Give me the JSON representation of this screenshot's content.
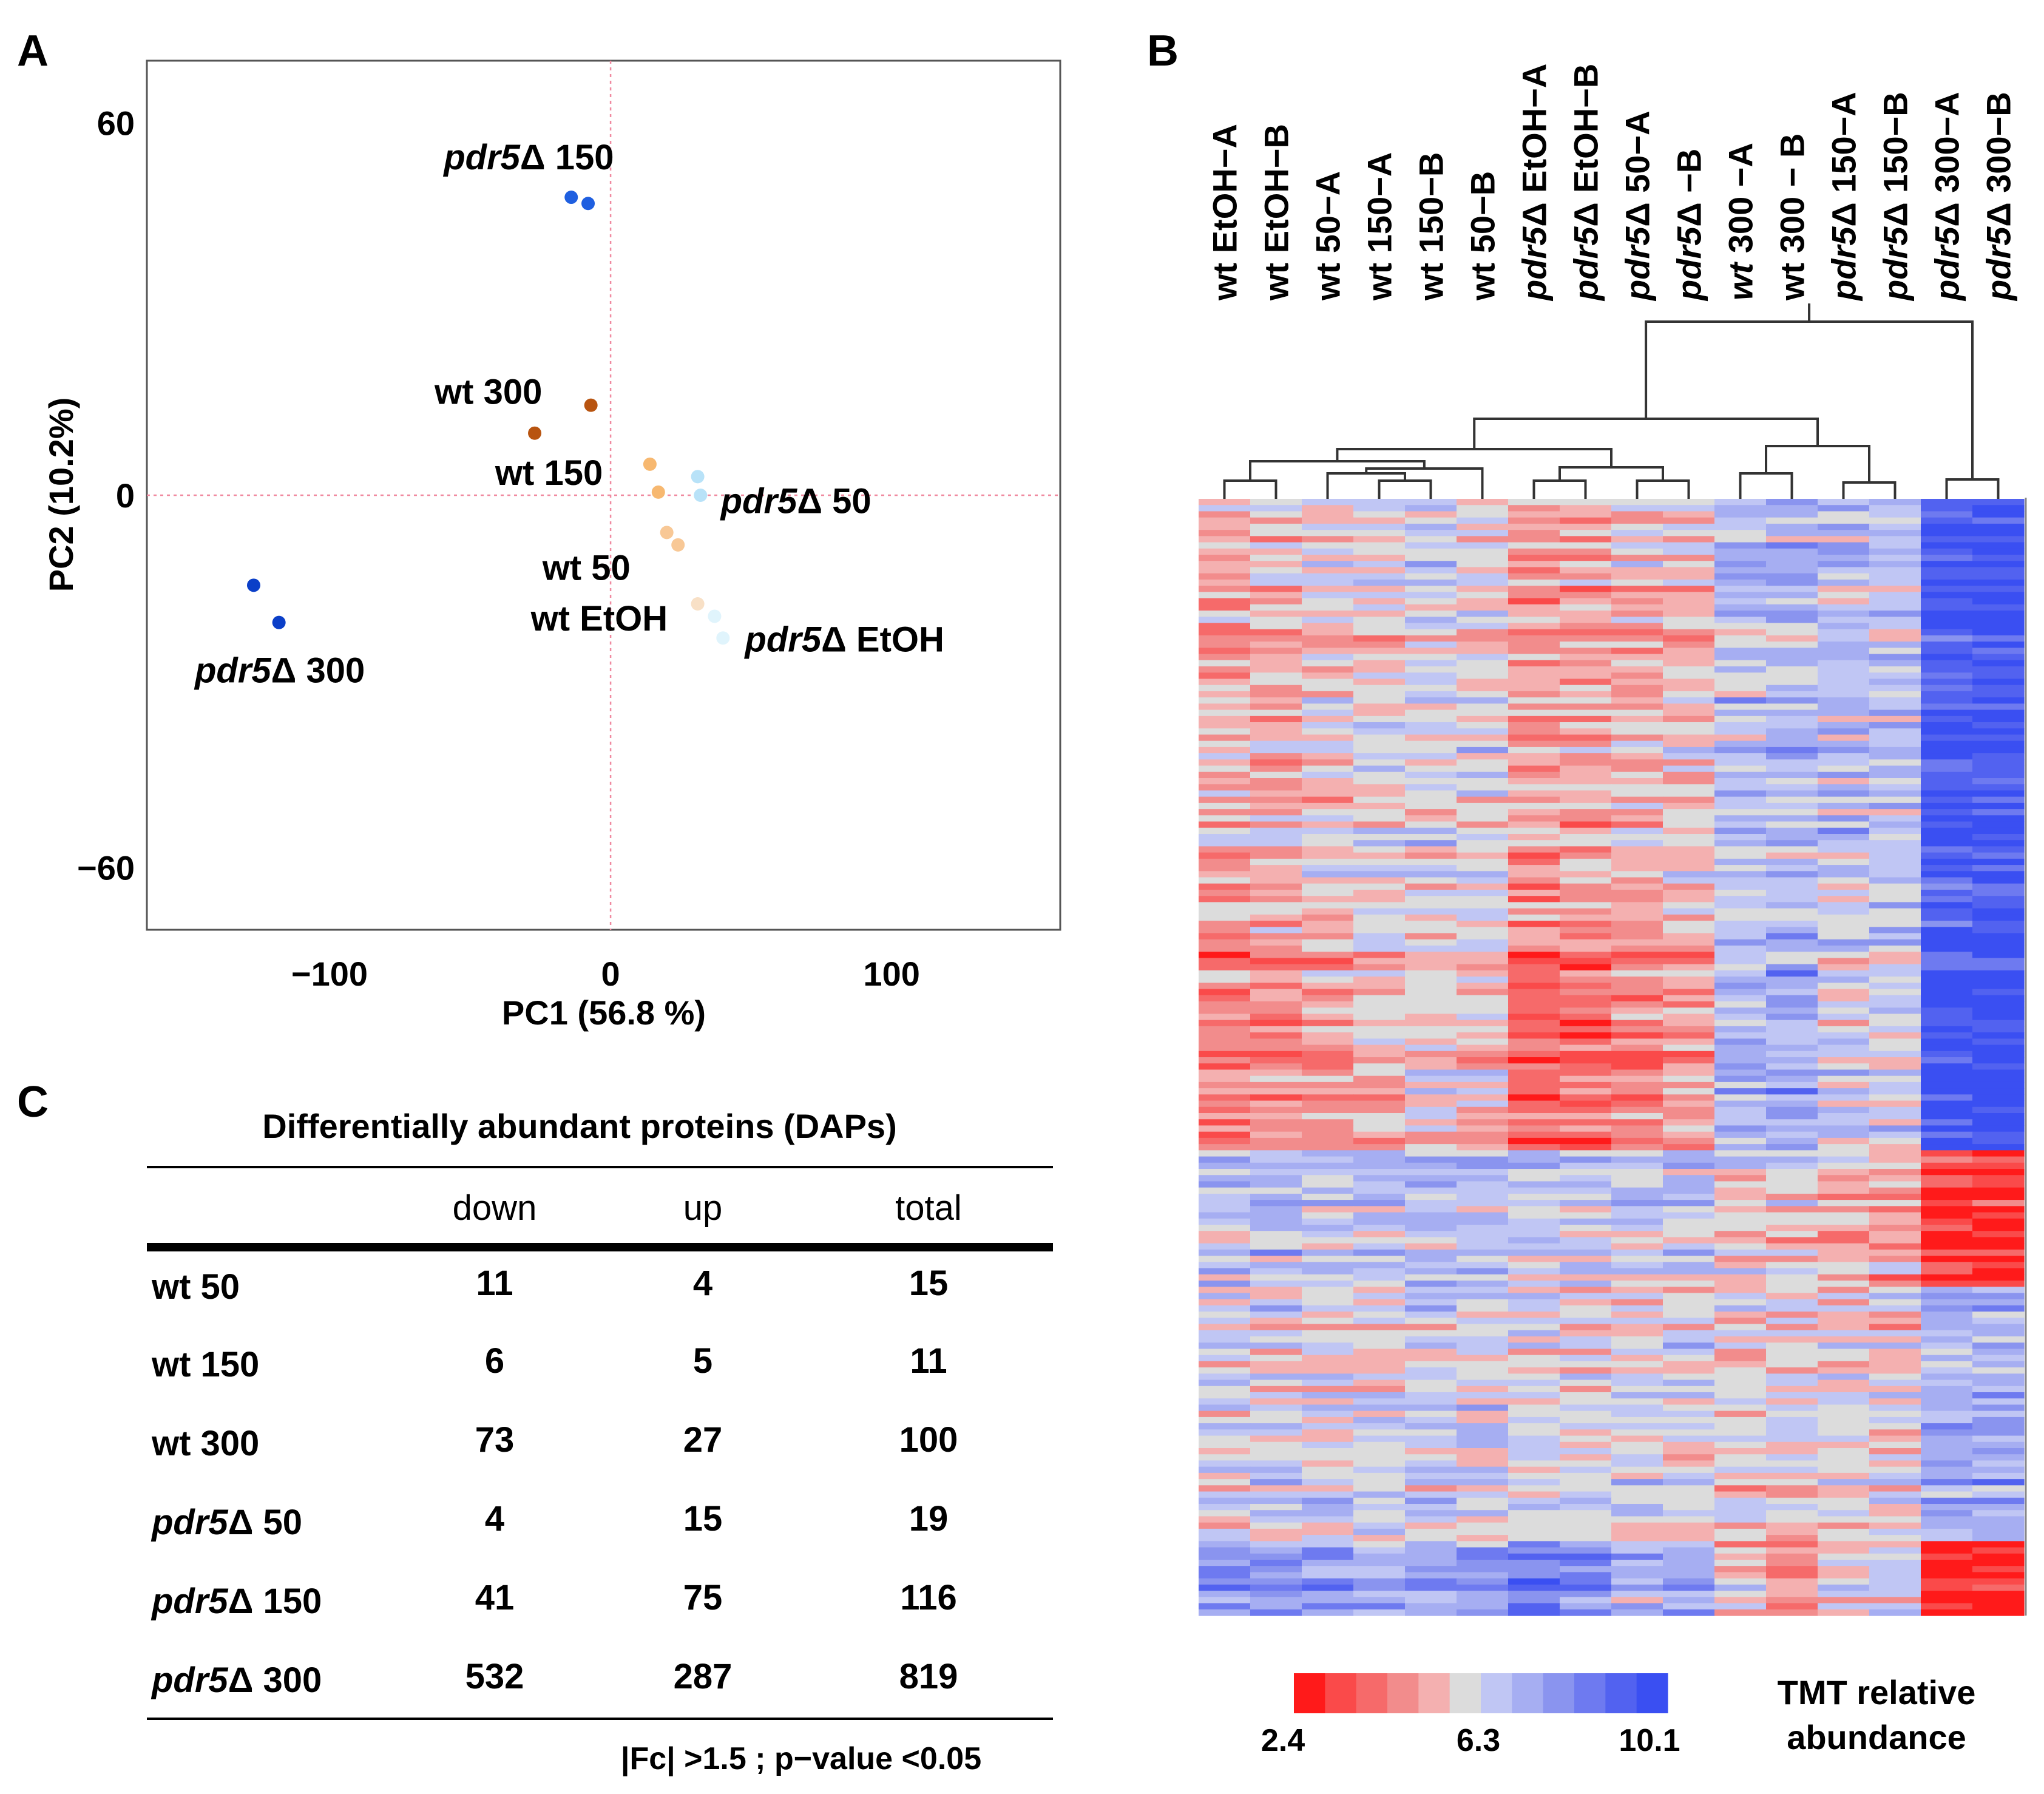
{
  "panel_labels": {
    "a": "A",
    "b": "B",
    "c": "C"
  },
  "chart_data": [
    {
      "type": "scatter",
      "panel": "A",
      "xlabel": "PC1 (56.8 %)",
      "ylabel": "PC2 (10.2%)",
      "xlim": [
        -165,
        160
      ],
      "ylim": [
        -70,
        70
      ],
      "xticks": [
        -100,
        0,
        100
      ],
      "xtick_labels": [
        "−100",
        "0",
        "100"
      ],
      "yticks": [
        -60,
        0,
        60
      ],
      "ytick_labels": [
        "−60",
        "0",
        "60"
      ],
      "reference_lines": {
        "x": 0,
        "y": 0
      },
      "series": [
        {
          "name": "pdr5Δ 150",
          "color": "#1f5fe0",
          "points": [
            [
              -14,
              48
            ],
            [
              -8,
              47
            ]
          ]
        },
        {
          "name": "wt 300",
          "color": "#b85410",
          "points": [
            [
              -27,
              10
            ],
            [
              -7,
              14.5
            ]
          ]
        },
        {
          "name": "wt 150",
          "color": "#f7b870",
          "points": [
            [
              14,
              5
            ],
            [
              17,
              0.5
            ]
          ]
        },
        {
          "name": "pdr5Δ 50",
          "color": "#b8e2f8",
          "points": [
            [
              31,
              3
            ],
            [
              32,
              0
            ]
          ]
        },
        {
          "name": "wt 50",
          "color": "#f8c896",
          "points": [
            [
              20,
              -6
            ],
            [
              24,
              -8
            ]
          ]
        },
        {
          "name": "wt EtOH",
          "color": "#f8e0c6",
          "points": [
            [
              31,
              -17.5
            ]
          ]
        },
        {
          "name": "pdr5Δ EtOH",
          "color": "#e0f4fc",
          "points": [
            [
              37,
              -19.5
            ],
            [
              40,
              -23
            ]
          ]
        },
        {
          "name": "pdr5Δ 300",
          "color": "#0b3fc8",
          "points": [
            [
              -127,
              -14.5
            ],
            [
              -118,
              -20.5
            ]
          ]
        }
      ],
      "annotations": [
        {
          "series": "pdr5Δ 150",
          "italic": "pdr5",
          "rest": "Δ 150"
        },
        {
          "series": "wt 300",
          "italic": "",
          "rest": "wt  300"
        },
        {
          "series": "wt 150",
          "italic": "",
          "rest": "wt  150"
        },
        {
          "series": "pdr5Δ 50",
          "italic": "pdr5",
          "rest": "Δ 50"
        },
        {
          "series": "wt 50",
          "italic": "",
          "rest": "wt  50"
        },
        {
          "series": "wt EtOH",
          "italic": "",
          "rest": "wt  EtOH"
        },
        {
          "series": "pdr5Δ EtOH",
          "italic": "pdr5",
          "rest": "Δ EtOH"
        },
        {
          "series": "pdr5Δ 300",
          "italic": "pdr5",
          "rest": "Δ 300"
        }
      ]
    },
    {
      "type": "heatmap",
      "panel": "B",
      "columns": [
        {
          "italic": "",
          "rest": "wt  EtOH−A"
        },
        {
          "italic": "",
          "rest": "wt  EtOH−B"
        },
        {
          "italic": "",
          "rest": "wt  50−A"
        },
        {
          "italic": "",
          "rest": "wt  150−A"
        },
        {
          "italic": "",
          "rest": "wt  150−B"
        },
        {
          "italic": "",
          "rest": "wt  50−B"
        },
        {
          "italic": "pdr5",
          "rest": "Δ EtOH−A"
        },
        {
          "italic": "pdr5",
          "rest": "Δ EtOH−B"
        },
        {
          "italic": "pdr5",
          "rest": "Δ 50−A"
        },
        {
          "italic": "pdr5",
          "rest": "Δ −B"
        },
        {
          "italic": "wt",
          "rest": " 300 −A"
        },
        {
          "italic": "",
          "rest": "wt  300 − B"
        },
        {
          "italic": "pdr5",
          "rest": "Δ 150−A"
        },
        {
          "italic": "pdr5",
          "rest": "Δ 150−B"
        },
        {
          "italic": "pdr5",
          "rest": "Δ 300−A"
        },
        {
          "italic": "pdr5",
          "rest": "Δ 300−B"
        }
      ],
      "color_scale": {
        "min": 2.4,
        "mid": 6.3,
        "max": 10.1,
        "tick_labels": [
          "2.4",
          "6.3",
          "10.1"
        ],
        "colors": [
          "#ff1a1a",
          "#fa4a4a",
          "#f66a6a",
          "#f28c8c",
          "#f4b0b0",
          "#dcdcdc",
          "#c0c6f4",
          "#a6aef2",
          "#8a94ef",
          "#6e7af0",
          "#5262f0",
          "#3a4ff2"
        ],
        "title_lines": [
          "TMT relative",
          "abundance"
        ]
      },
      "rows": 180,
      "cluster_blocks": [
        {
          "name": "block-1",
          "rows": [
            0,
            70
          ],
          "profile": [
            0.35,
            0.38,
            0.42,
            0.46,
            0.47,
            0.46,
            0.32,
            0.34,
            0.38,
            0.4,
            0.55,
            0.57,
            0.55,
            0.55,
            0.9,
            0.92
          ]
        },
        {
          "name": "block-2",
          "rows": [
            70,
            105
          ],
          "profile": [
            0.28,
            0.3,
            0.35,
            0.4,
            0.42,
            0.41,
            0.22,
            0.24,
            0.3,
            0.34,
            0.6,
            0.66,
            0.5,
            0.5,
            0.97,
            0.97
          ]
        },
        {
          "name": "block-3",
          "rows": [
            105,
            127
          ],
          "profile": [
            0.57,
            0.56,
            0.55,
            0.56,
            0.57,
            0.56,
            0.58,
            0.57,
            0.55,
            0.55,
            0.45,
            0.43,
            0.38,
            0.39,
            0.12,
            0.1
          ]
        },
        {
          "name": "block-4",
          "rows": [
            127,
            168
          ],
          "profile": [
            0.47,
            0.48,
            0.48,
            0.49,
            0.49,
            0.49,
            0.46,
            0.47,
            0.47,
            0.47,
            0.44,
            0.44,
            0.44,
            0.45,
            0.6,
            0.62
          ]
        },
        {
          "name": "block-5",
          "rows": [
            168,
            180
          ],
          "profile": [
            0.72,
            0.68,
            0.66,
            0.62,
            0.62,
            0.66,
            0.78,
            0.74,
            0.62,
            0.62,
            0.4,
            0.3,
            0.44,
            0.48,
            0.0,
            0.0
          ]
        }
      ]
    },
    {
      "type": "table",
      "panel": "C",
      "title": "Differentially  abundant proteins (DAPs)",
      "headers": [
        "",
        "down",
        "up",
        "total"
      ],
      "rows": [
        {
          "italic": "",
          "label": "wt  50",
          "values": [
            "11",
            "4",
            "15"
          ]
        },
        {
          "italic": "",
          "label": "wt  150",
          "values": [
            "6",
            "5",
            "11"
          ]
        },
        {
          "italic": "",
          "label": "wt  300",
          "values": [
            "73",
            "27",
            "100"
          ]
        },
        {
          "italic": "pdr5",
          "label": "Δ 50",
          "values": [
            "4",
            "15",
            "19"
          ]
        },
        {
          "italic": "pdr5",
          "label": "Δ 150",
          "values": [
            "41",
            "75",
            "116"
          ]
        },
        {
          "italic": "pdr5",
          "label": "Δ 300",
          "values": [
            "532",
            "287",
            "819"
          ]
        }
      ],
      "footnote": "|Fc| >1.5 ; p−value <0.05"
    }
  ]
}
